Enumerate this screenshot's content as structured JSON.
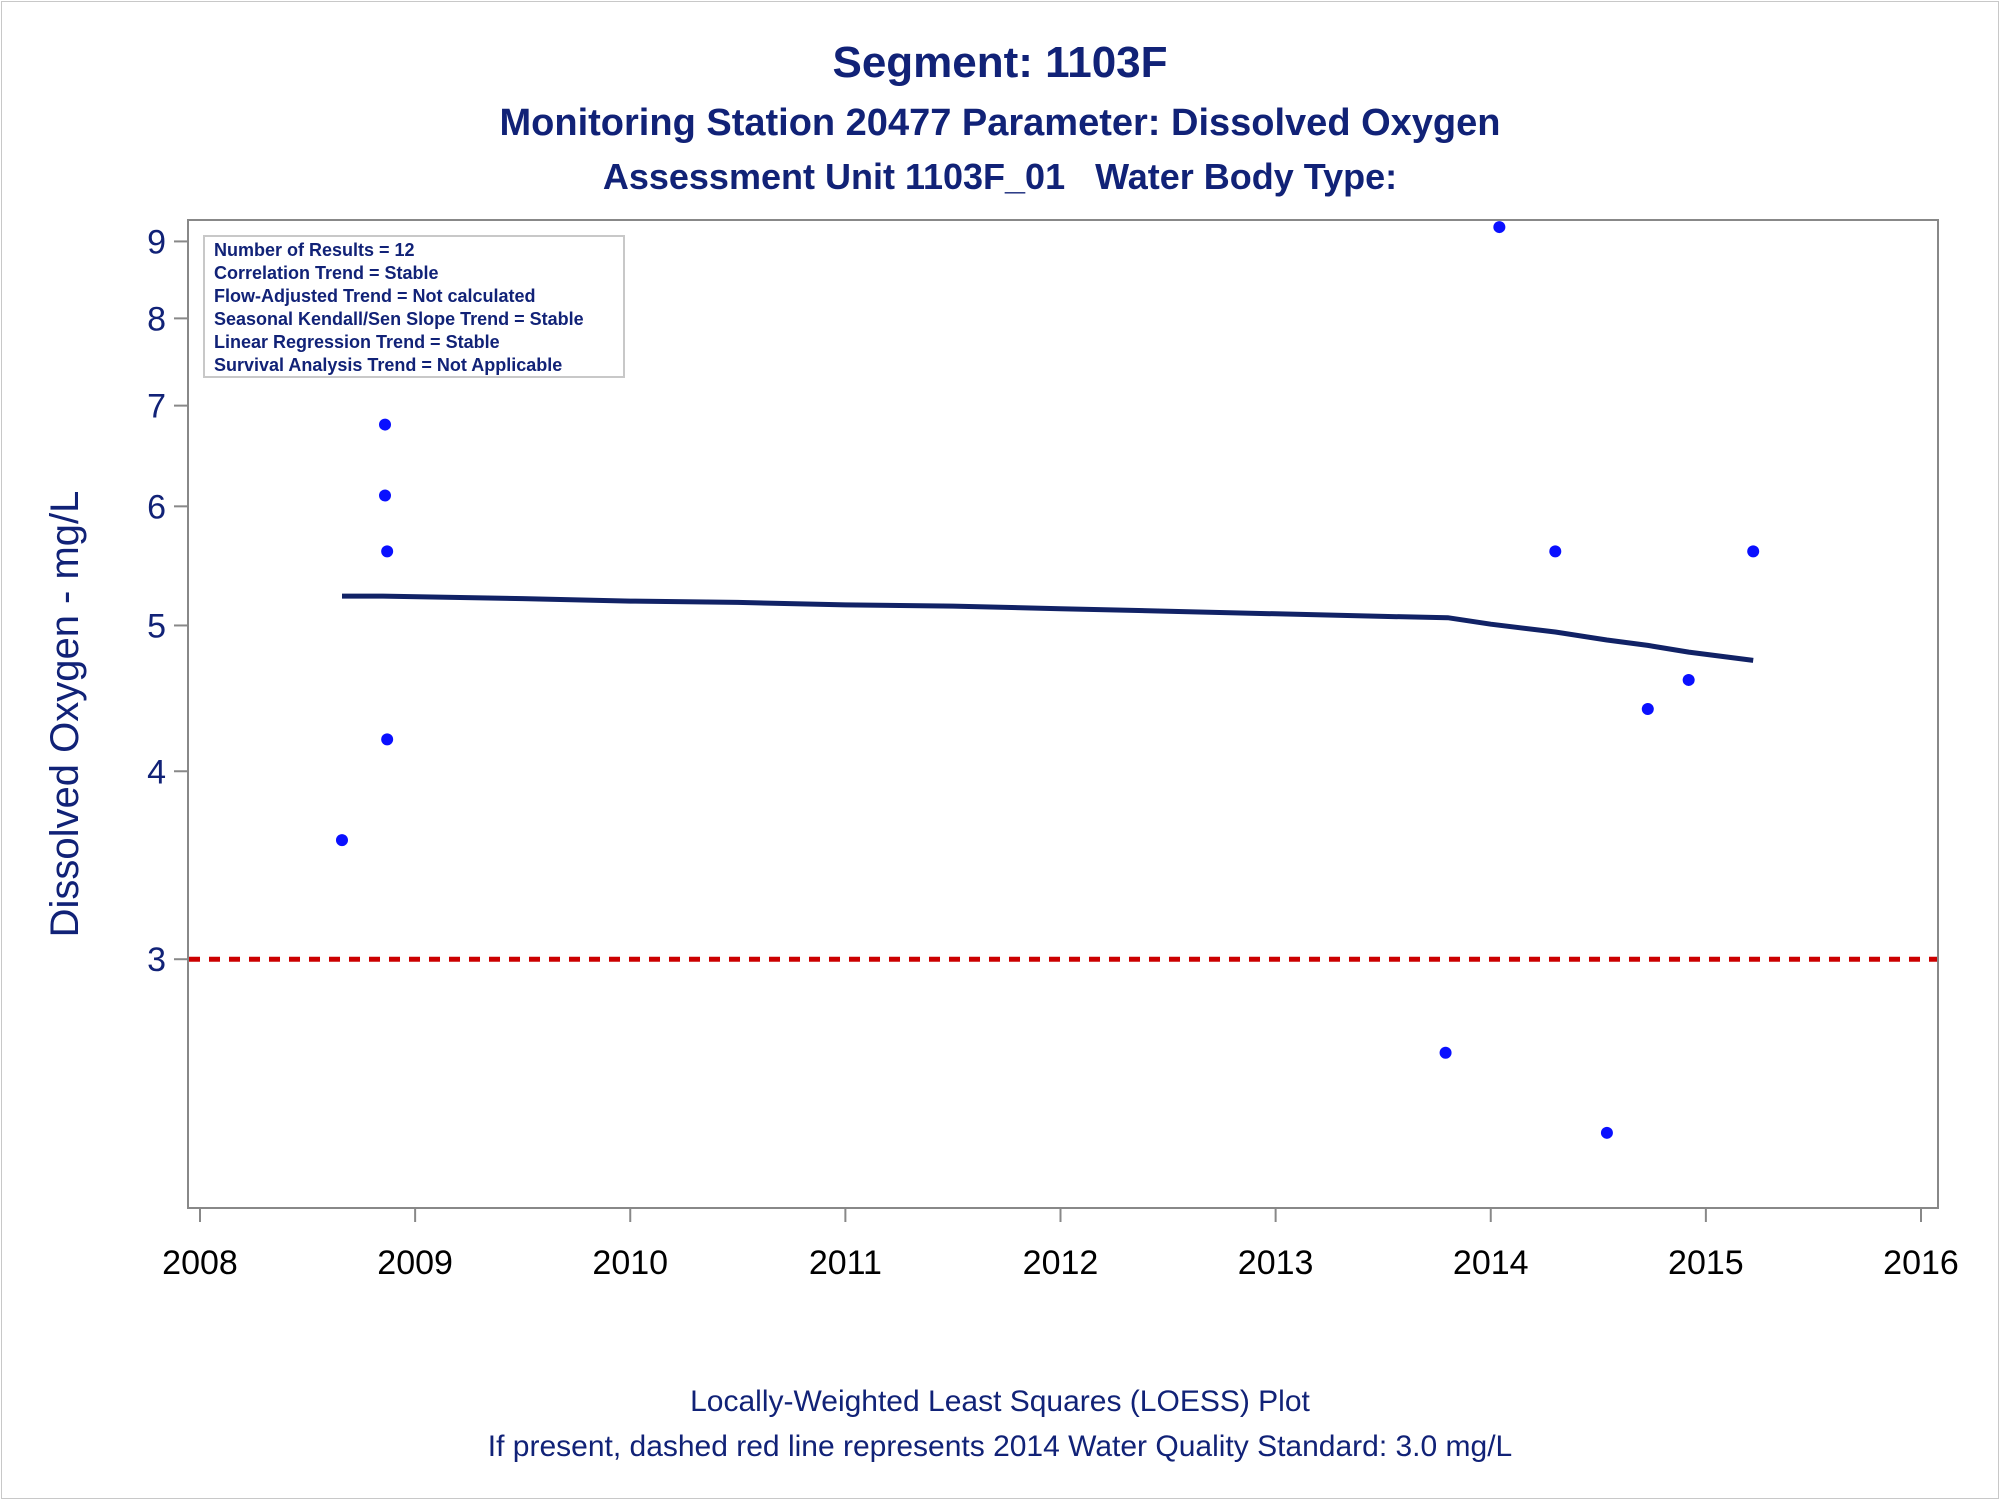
{
  "titles": {
    "line1": "Segment: 1103F",
    "line2": "Monitoring Station 20477 Parameter: Dissolved Oxygen",
    "line3": "Assessment Unit 1103F_01   Water Body Type:"
  },
  "footnotes": {
    "line1": "Locally-Weighted Least Squares (LOESS) Plot",
    "line2": "If present, dashed red line represents 2014 Water Quality Standard: 3.0 mg/L"
  },
  "stats_box": [
    "Number of Results = 12",
    "Correlation Trend = Stable",
    "Flow-Adjusted Trend = Not calculated",
    "Seasonal Kendall/Sen Slope Trend = Stable",
    "Linear Regression Trend = Stable",
    "Survival Analysis Trend = Not Applicable"
  ],
  "colors": {
    "text": "#112277",
    "points": "#0a10ff",
    "loess": "#112266",
    "standard": "#cc0000",
    "axis": "#888888"
  },
  "chart_data": {
    "type": "scatter",
    "xlabel": "",
    "ylabel": "Dissolved Oxygen - mg/L",
    "y_scale": "log",
    "xlim": [
      2008,
      2016
    ],
    "ylim": [
      2.05,
      9.3
    ],
    "x_ticks": [
      2008,
      2009,
      2010,
      2011,
      2012,
      2013,
      2014,
      2015,
      2016
    ],
    "y_ticks": [
      3,
      4,
      5,
      6,
      7,
      8,
      9
    ],
    "grid": false,
    "legend": "none",
    "points": [
      {
        "x": 2008.66,
        "y": 3.6
      },
      {
        "x": 2008.86,
        "y": 6.8
      },
      {
        "x": 2008.86,
        "y": 6.1
      },
      {
        "x": 2008.87,
        "y": 5.6
      },
      {
        "x": 2008.87,
        "y": 4.2
      },
      {
        "x": 2013.79,
        "y": 2.6
      },
      {
        "x": 2014.04,
        "y": 9.2
      },
      {
        "x": 2014.3,
        "y": 5.6
      },
      {
        "x": 2014.54,
        "y": 2.3
      },
      {
        "x": 2014.73,
        "y": 4.4
      },
      {
        "x": 2014.92,
        "y": 4.6
      },
      {
        "x": 2015.22,
        "y": 5.6
      }
    ],
    "loess": [
      {
        "x": 2008.66,
        "y": 5.23
      },
      {
        "x": 2008.85,
        "y": 5.23
      },
      {
        "x": 2009.5,
        "y": 5.21
      },
      {
        "x": 2010.0,
        "y": 5.19
      },
      {
        "x": 2010.5,
        "y": 5.18
      },
      {
        "x": 2011.0,
        "y": 5.16
      },
      {
        "x": 2011.5,
        "y": 5.15
      },
      {
        "x": 2012.0,
        "y": 5.13
      },
      {
        "x": 2012.5,
        "y": 5.11
      },
      {
        "x": 2013.0,
        "y": 5.09
      },
      {
        "x": 2013.5,
        "y": 5.07
      },
      {
        "x": 2013.8,
        "y": 5.06
      },
      {
        "x": 2014.0,
        "y": 5.01
      },
      {
        "x": 2014.3,
        "y": 4.95
      },
      {
        "x": 2014.54,
        "y": 4.89
      },
      {
        "x": 2014.73,
        "y": 4.85
      },
      {
        "x": 2014.92,
        "y": 4.8
      },
      {
        "x": 2015.22,
        "y": 4.74
      }
    ],
    "reference_line": {
      "y": 3.0,
      "style": "dashed"
    }
  }
}
